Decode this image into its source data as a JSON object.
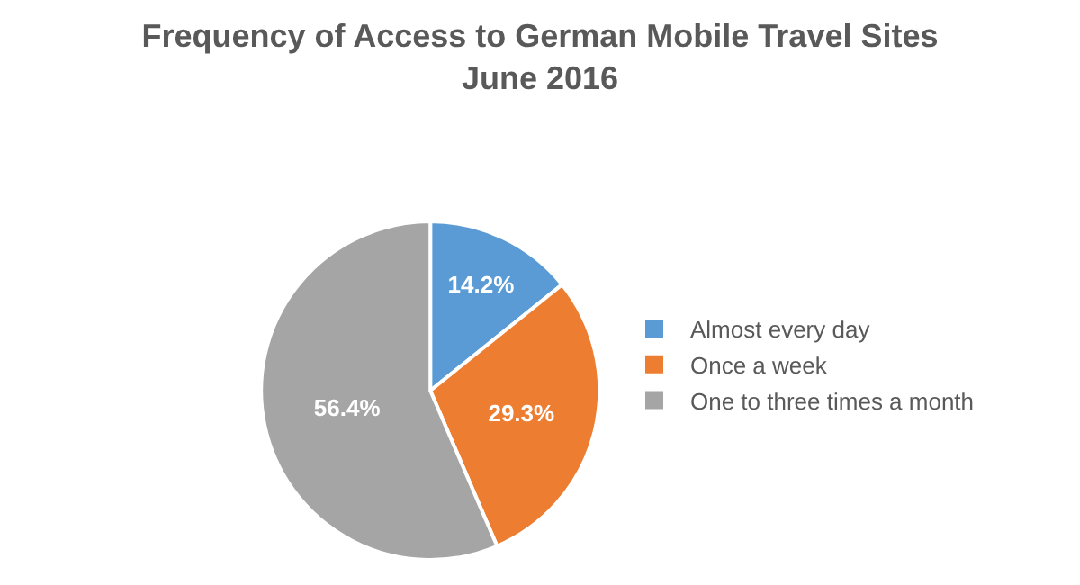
{
  "chart_data": {
    "type": "pie",
    "title": "Frequency of Access to German Mobile Travel Sites",
    "subtitle": "June 2016",
    "categories": [
      "Almost every day",
      "Once a week",
      "One to three times a month"
    ],
    "values": [
      14.2,
      29.3,
      56.4
    ],
    "colors": [
      "#5b9bd5",
      "#ed7d31",
      "#a5a5a5"
    ],
    "value_labels": [
      "14.2%",
      "29.3%",
      "56.4%"
    ],
    "legend": "right"
  }
}
